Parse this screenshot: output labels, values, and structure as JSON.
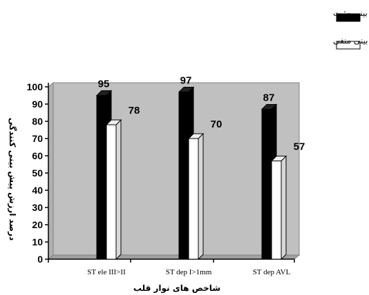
{
  "chart_data": {
    "type": "bar",
    "categories": [
      "ST ele III>II",
      "ST dep I>1mm",
      "ST dep AVL"
    ],
    "series": [
      {
        "name": "ارزش پیش بینی مثبت",
        "values": [
          95,
          97,
          87
        ],
        "color": "#000000"
      },
      {
        "name": "ارزش پیش بینی منفی",
        "values": [
          78,
          70,
          57
        ],
        "color": "#ffffff"
      }
    ],
    "xlabel": "شاخص های نوار قلب",
    "ylabel": "درصد ارزش پیش بینی کنندگی",
    "ylim": [
      0,
      100
    ],
    "yticks": [
      0,
      10,
      20,
      30,
      40,
      50,
      60,
      70,
      80,
      90,
      100
    ],
    "plot_background": "#c0c0c0",
    "legend_position": "top-right",
    "grid": false,
    "style": "3d-bar"
  }
}
